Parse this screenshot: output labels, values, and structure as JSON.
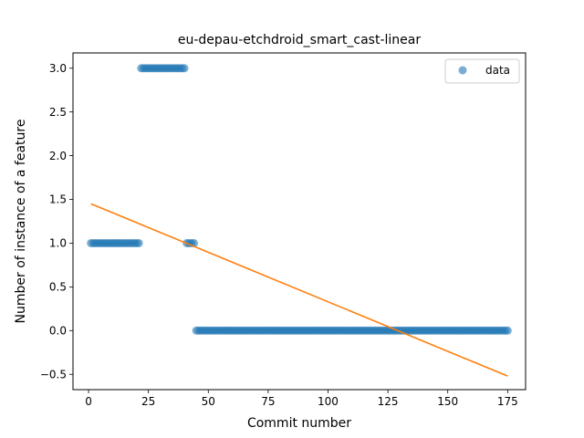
{
  "chart_data": {
    "type": "scatter",
    "title": "eu-depau-etchdroid_smart_cast-linear",
    "xlabel": "Commit number",
    "ylabel": "Number of instance of a feature",
    "xlim": [
      -6.5,
      182.5
    ],
    "ylim": [
      -0.675,
      3.175
    ],
    "xticks": [
      0,
      25,
      50,
      75,
      100,
      125,
      150,
      175
    ],
    "yticks": [
      -0.5,
      0.0,
      0.5,
      1.0,
      1.5,
      2.0,
      2.5,
      3.0
    ],
    "ytick_labels": [
      "−0.5",
      "0.0",
      "0.5",
      "1.0",
      "1.5",
      "2.0",
      "2.5",
      "3.0"
    ],
    "legend": {
      "position": "top-right",
      "label": "data"
    },
    "grid": false,
    "series": [
      {
        "name": "data",
        "style": "markers",
        "color": "#1f77b4",
        "segments": [
          {
            "x_start": 1,
            "x_end": 21,
            "y": 1
          },
          {
            "x_start": 22,
            "x_end": 40,
            "y": 3
          },
          {
            "x_start": 41,
            "x_end": 44,
            "y": 1
          },
          {
            "x_start": 45,
            "x_end": 175,
            "y": 0
          }
        ]
      },
      {
        "style": "line",
        "color": "#ff7f0e",
        "x": [
          1,
          175
        ],
        "y": [
          1.45,
          -0.52
        ]
      }
    ]
  }
}
